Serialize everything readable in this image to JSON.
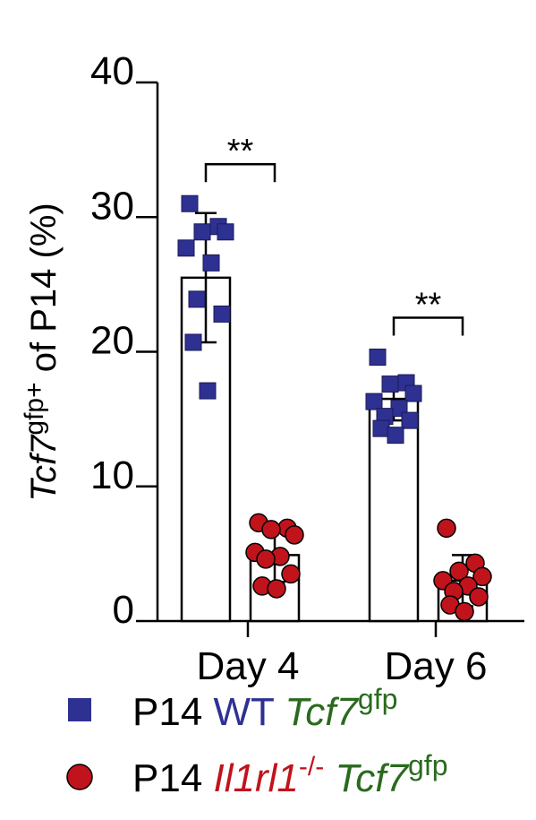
{
  "chart_data": {
    "type": "bar",
    "title": "",
    "xlabel": "",
    "ylabel": {
      "main": "Tcf7",
      "sup": "gfp+",
      "rest": " of P14 (%)"
    },
    "ylim": [
      0,
      40
    ],
    "yticks": [
      "0",
      "10",
      "20",
      "30",
      "40"
    ],
    "categories": [
      "Day 4",
      "Day 6"
    ],
    "series": [
      {
        "name": "P14 WT Tcf7gfp",
        "color": "#2e3192",
        "marker": "square",
        "values": [
          25.5,
          16.5
        ],
        "errors": [
          4.8,
          1.6
        ],
        "points": [
          [
            31.0,
            29.3,
            28.9,
            28.9,
            27.7,
            26.6,
            23.9,
            22.8,
            20.7,
            17.1
          ],
          [
            19.6,
            17.7,
            17.6,
            16.9,
            16.3,
            15.8,
            15.2,
            14.9,
            14.3,
            13.8
          ]
        ]
      },
      {
        "name": "P14 Il1rl1-/- Tcf7gfp",
        "color": "#c1131c",
        "marker": "circle",
        "values": [
          4.9,
          3.0
        ],
        "errors": [
          2.0,
          1.9
        ],
        "points": [
          [
            7.3,
            6.9,
            6.8,
            6.4,
            5.1,
            4.8,
            4.6,
            3.5,
            2.6,
            2.4
          ],
          [
            6.9,
            4.3,
            3.7,
            3.3,
            3.0,
            2.6,
            2.2,
            1.8,
            1.2,
            0.7
          ]
        ]
      }
    ],
    "significance": [
      {
        "category": "Day 4",
        "label": "**"
      },
      {
        "category": "Day 6",
        "label": "**"
      }
    ],
    "legend": {
      "position": "bottom",
      "entries": [
        {
          "prefix": "P14",
          "genotype": "WT",
          "genotype_color": "#2e3192",
          "reporter": "Tcf7",
          "reporter_sup": "gfp",
          "reporter_color": "#2a6a1e"
        },
        {
          "prefix": "P14",
          "genotype": "Il1rl1",
          "genotype_sup": "-/-",
          "genotype_color": "#c1131c",
          "reporter": "Tcf7",
          "reporter_sup": "gfp",
          "reporter_color": "#2a6a1e"
        }
      ]
    }
  }
}
